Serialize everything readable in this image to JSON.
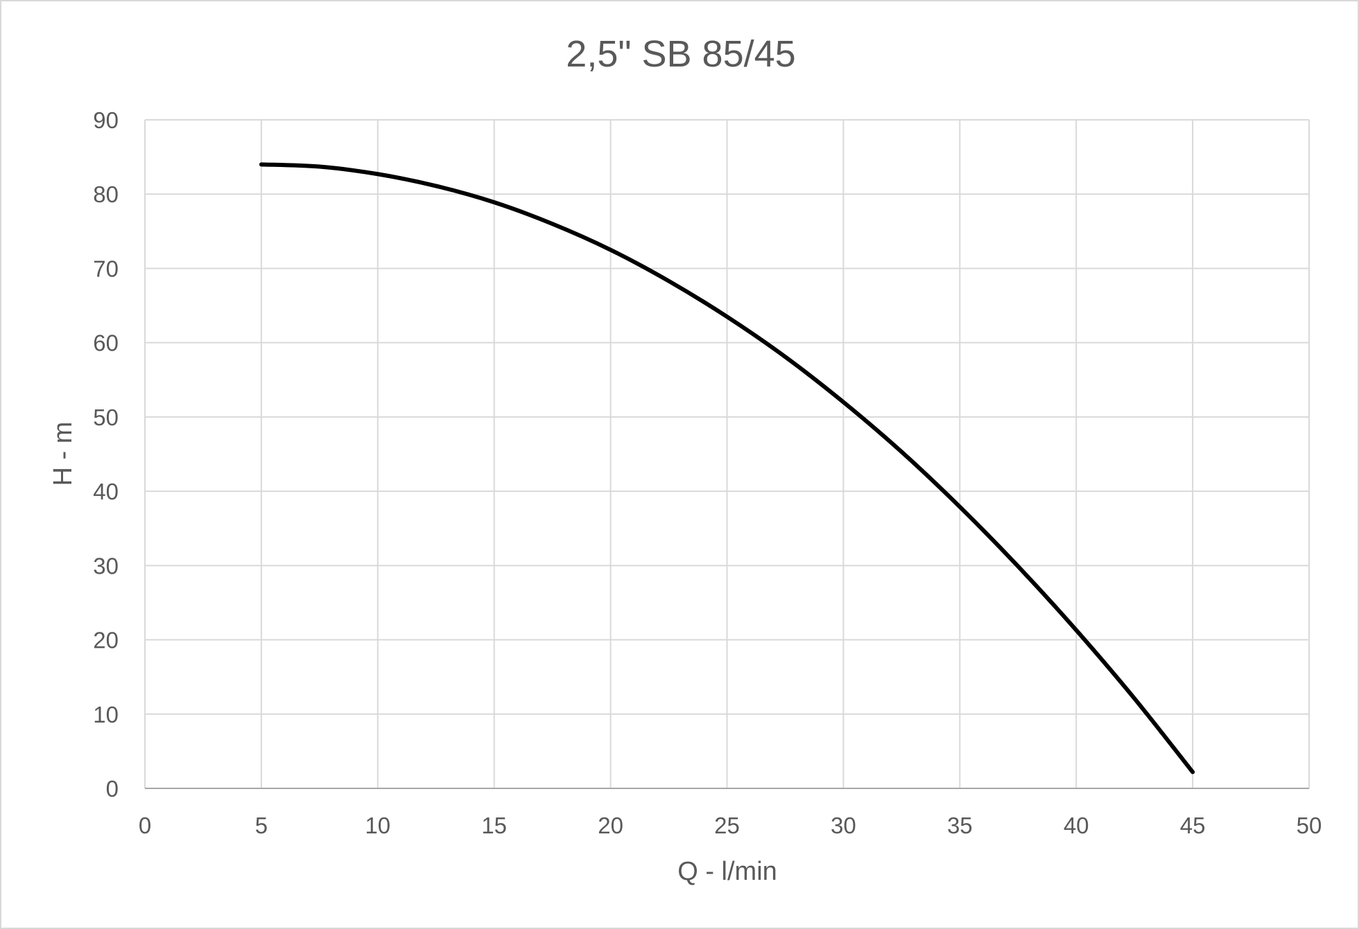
{
  "chart_data": {
    "type": "line",
    "title": "2,5\" SB 85/45",
    "xlabel": "Q - l/min",
    "ylabel": "H - m",
    "xlim": [
      0,
      50
    ],
    "ylim": [
      0,
      90
    ],
    "x_ticks": [
      "0",
      "5",
      "10",
      "15",
      "20",
      "25",
      "30",
      "35",
      "40",
      "45",
      "50"
    ],
    "y_ticks": [
      "0",
      "10",
      "20",
      "30",
      "40",
      "50",
      "60",
      "70",
      "80",
      "90"
    ],
    "grid": true,
    "series": [
      {
        "color": "#000000",
        "x": [
          5,
          7.5,
          10,
          12.5,
          15,
          17.5,
          20,
          22.5,
          25,
          27.5,
          30,
          32.5,
          35,
          37.5,
          40,
          42.5,
          45
        ],
        "y": [
          84,
          83.7,
          82.7,
          81.1,
          78.9,
          76,
          72.5,
          68.3,
          63.5,
          58.1,
          52,
          45.3,
          37.9,
          29.9,
          21.3,
          12.1,
          2.2
        ]
      }
    ]
  }
}
